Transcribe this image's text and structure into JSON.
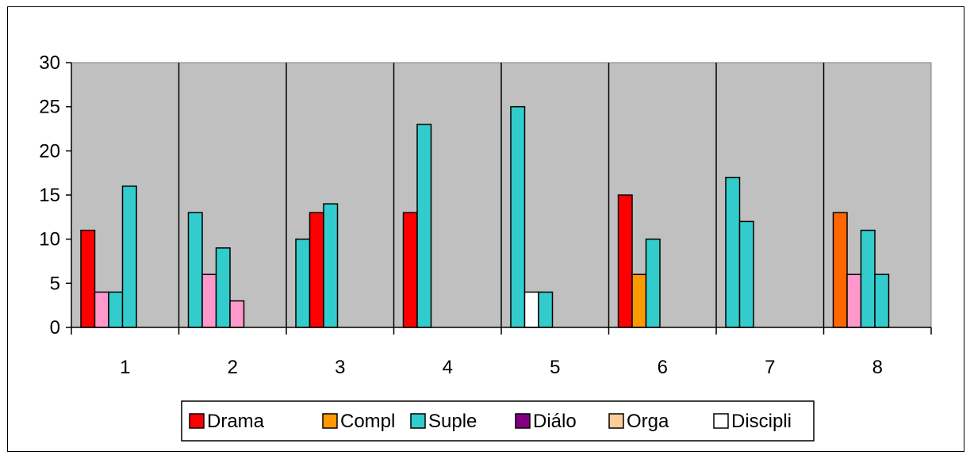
{
  "chart_data": {
    "type": "bar",
    "title": "",
    "xlabel": "",
    "ylabel": "",
    "ylim": [
      0,
      30
    ],
    "yticks": [
      0,
      5,
      10,
      15,
      20,
      25,
      30
    ],
    "grid": false,
    "legend_position": "bottom",
    "plot_background": "#C0C0C0",
    "categories": [
      "1",
      "2",
      "3",
      "4",
      "5",
      "6",
      "7",
      "8"
    ],
    "groups": [
      {
        "category": "1",
        "bars": [
          {
            "series": "Drama",
            "value": 11
          },
          {
            "color": "#FF99CC",
            "value": 4
          },
          {
            "series": "Suple",
            "value": 4
          },
          {
            "series": "Suple",
            "value": 16
          }
        ]
      },
      {
        "category": "2",
        "bars": [
          {
            "series": "Suple",
            "value": 13
          },
          {
            "color": "#FF99CC",
            "value": 6
          },
          {
            "series": "Suple",
            "value": 9
          },
          {
            "color": "#FF99CC",
            "value": 3
          }
        ]
      },
      {
        "category": "3",
        "bars": [
          {
            "series": "Suple",
            "value": 10
          },
          {
            "series": "Drama",
            "value": 13
          },
          {
            "series": "Suple",
            "value": 14
          }
        ]
      },
      {
        "category": "4",
        "bars": [
          {
            "series": "Drama",
            "value": 13
          },
          {
            "series": "Suple",
            "value": 23
          }
        ]
      },
      {
        "category": "5",
        "bars": [
          {
            "series": "Suple",
            "value": 25
          },
          {
            "series": "Discipli",
            "value": 4
          },
          {
            "series": "Suple",
            "value": 4
          }
        ]
      },
      {
        "category": "6",
        "bars": [
          {
            "series": "Drama",
            "value": 15
          },
          {
            "series": "Compl",
            "value": 6
          },
          {
            "series": "Suple",
            "value": 10
          }
        ]
      },
      {
        "category": "7",
        "bars": [
          {
            "series": "Suple",
            "value": 17
          },
          {
            "series": "Suple",
            "value": 12
          }
        ]
      },
      {
        "category": "8",
        "bars": [
          {
            "color": "#FF6600",
            "value": 13
          },
          {
            "color": "#FF99CC",
            "value": 6
          },
          {
            "series": "Suple",
            "value": 11
          },
          {
            "series": "Suple",
            "value": 6
          }
        ]
      }
    ],
    "legend": [
      {
        "name": "Drama",
        "color": "#FF0000"
      },
      {
        "name": "Compl",
        "color": "#FF9900"
      },
      {
        "name": "Suple",
        "color": "#33CCCC"
      },
      {
        "name": "Diálo",
        "color": "#800080"
      },
      {
        "name": "Orga",
        "color": "#FFCC99"
      },
      {
        "name": "Discipli",
        "color": "#FFFFFF"
      }
    ]
  }
}
